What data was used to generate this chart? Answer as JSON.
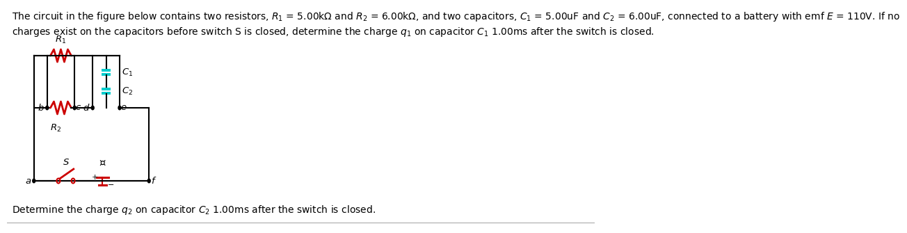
{
  "title_line1": "The circuit in the figure below contains two resistors, $R_1$ = 5.00kΩ and $R_2$ = 6.00kΩ, and two capacitors, $C_1$ = 5.00uF and $C_2$ = 6.00uF, connected to a battery with emf $E$ = 110V. If no",
  "title_line2": "charges exist on the capacitors before switch S is closed, determine the charge $q_1$ on capacitor $C_1$ 1.00ms after the switch is closed.",
  "bottom_text": "Determine the charge $q_2$ on capacitor $C_2$ 1.00ms after the switch is closed.",
  "wire_color": "#000000",
  "resistor_color": "#cc0000",
  "capacitor_color": "#00cccc",
  "battery_pos_color": "#cc0000",
  "switch_color": "#cc0000",
  "dot_color": "#000000",
  "bg_color": "#ffffff",
  "text_color": "#000000",
  "font_size_title": 10.0,
  "font_size_bottom": 10.0,
  "label_fontsize": 9.5
}
